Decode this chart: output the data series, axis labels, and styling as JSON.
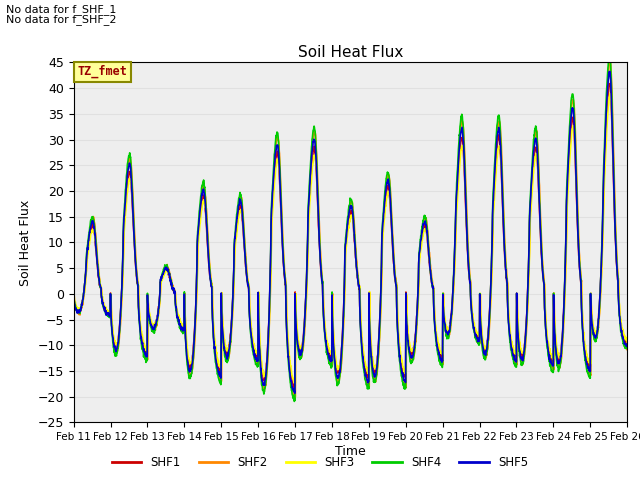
{
  "title": "Soil Heat Flux",
  "ylabel": "Soil Heat Flux",
  "xlabel": "Time",
  "ylim": [
    -25,
    45
  ],
  "no_data_texts": [
    "No data for f_SHF_1",
    "No data for f_SHF_2"
  ],
  "tz_label": "TZ_fmet",
  "tz_box_color": "#ffff99",
  "tz_text_color": "#990000",
  "legend_entries": [
    "SHF1",
    "SHF2",
    "SHF3",
    "SHF4",
    "SHF5"
  ],
  "line_colors": [
    "#cc0000",
    "#ff8800",
    "#ffff00",
    "#00cc00",
    "#0000cc"
  ],
  "line_widths": [
    1.2,
    1.2,
    1.2,
    1.2,
    1.2
  ],
  "x_tick_labels": [
    "Feb 11",
    "Feb 12",
    "Feb 13",
    "Feb 14",
    "Feb 15",
    "Feb 16",
    "Feb 17",
    "Feb 18",
    "Feb 19",
    "Feb 20",
    "Feb 21",
    "Feb 22",
    "Feb 23",
    "Feb 24",
    "Feb 25",
    "Feb 26"
  ],
  "num_days": 15,
  "background_color": "#ffffff",
  "grid_color": "#e0e0e0",
  "peaks": [
    14,
    25,
    5,
    20,
    18,
    29,
    30,
    17,
    22,
    14,
    32,
    32,
    30,
    36,
    43
  ],
  "troughs": [
    -4,
    -12,
    -7,
    -16,
    -13,
    -19,
    -13,
    -17,
    -17,
    -13,
    -9,
    -13,
    -14,
    -15,
    -10
  ]
}
